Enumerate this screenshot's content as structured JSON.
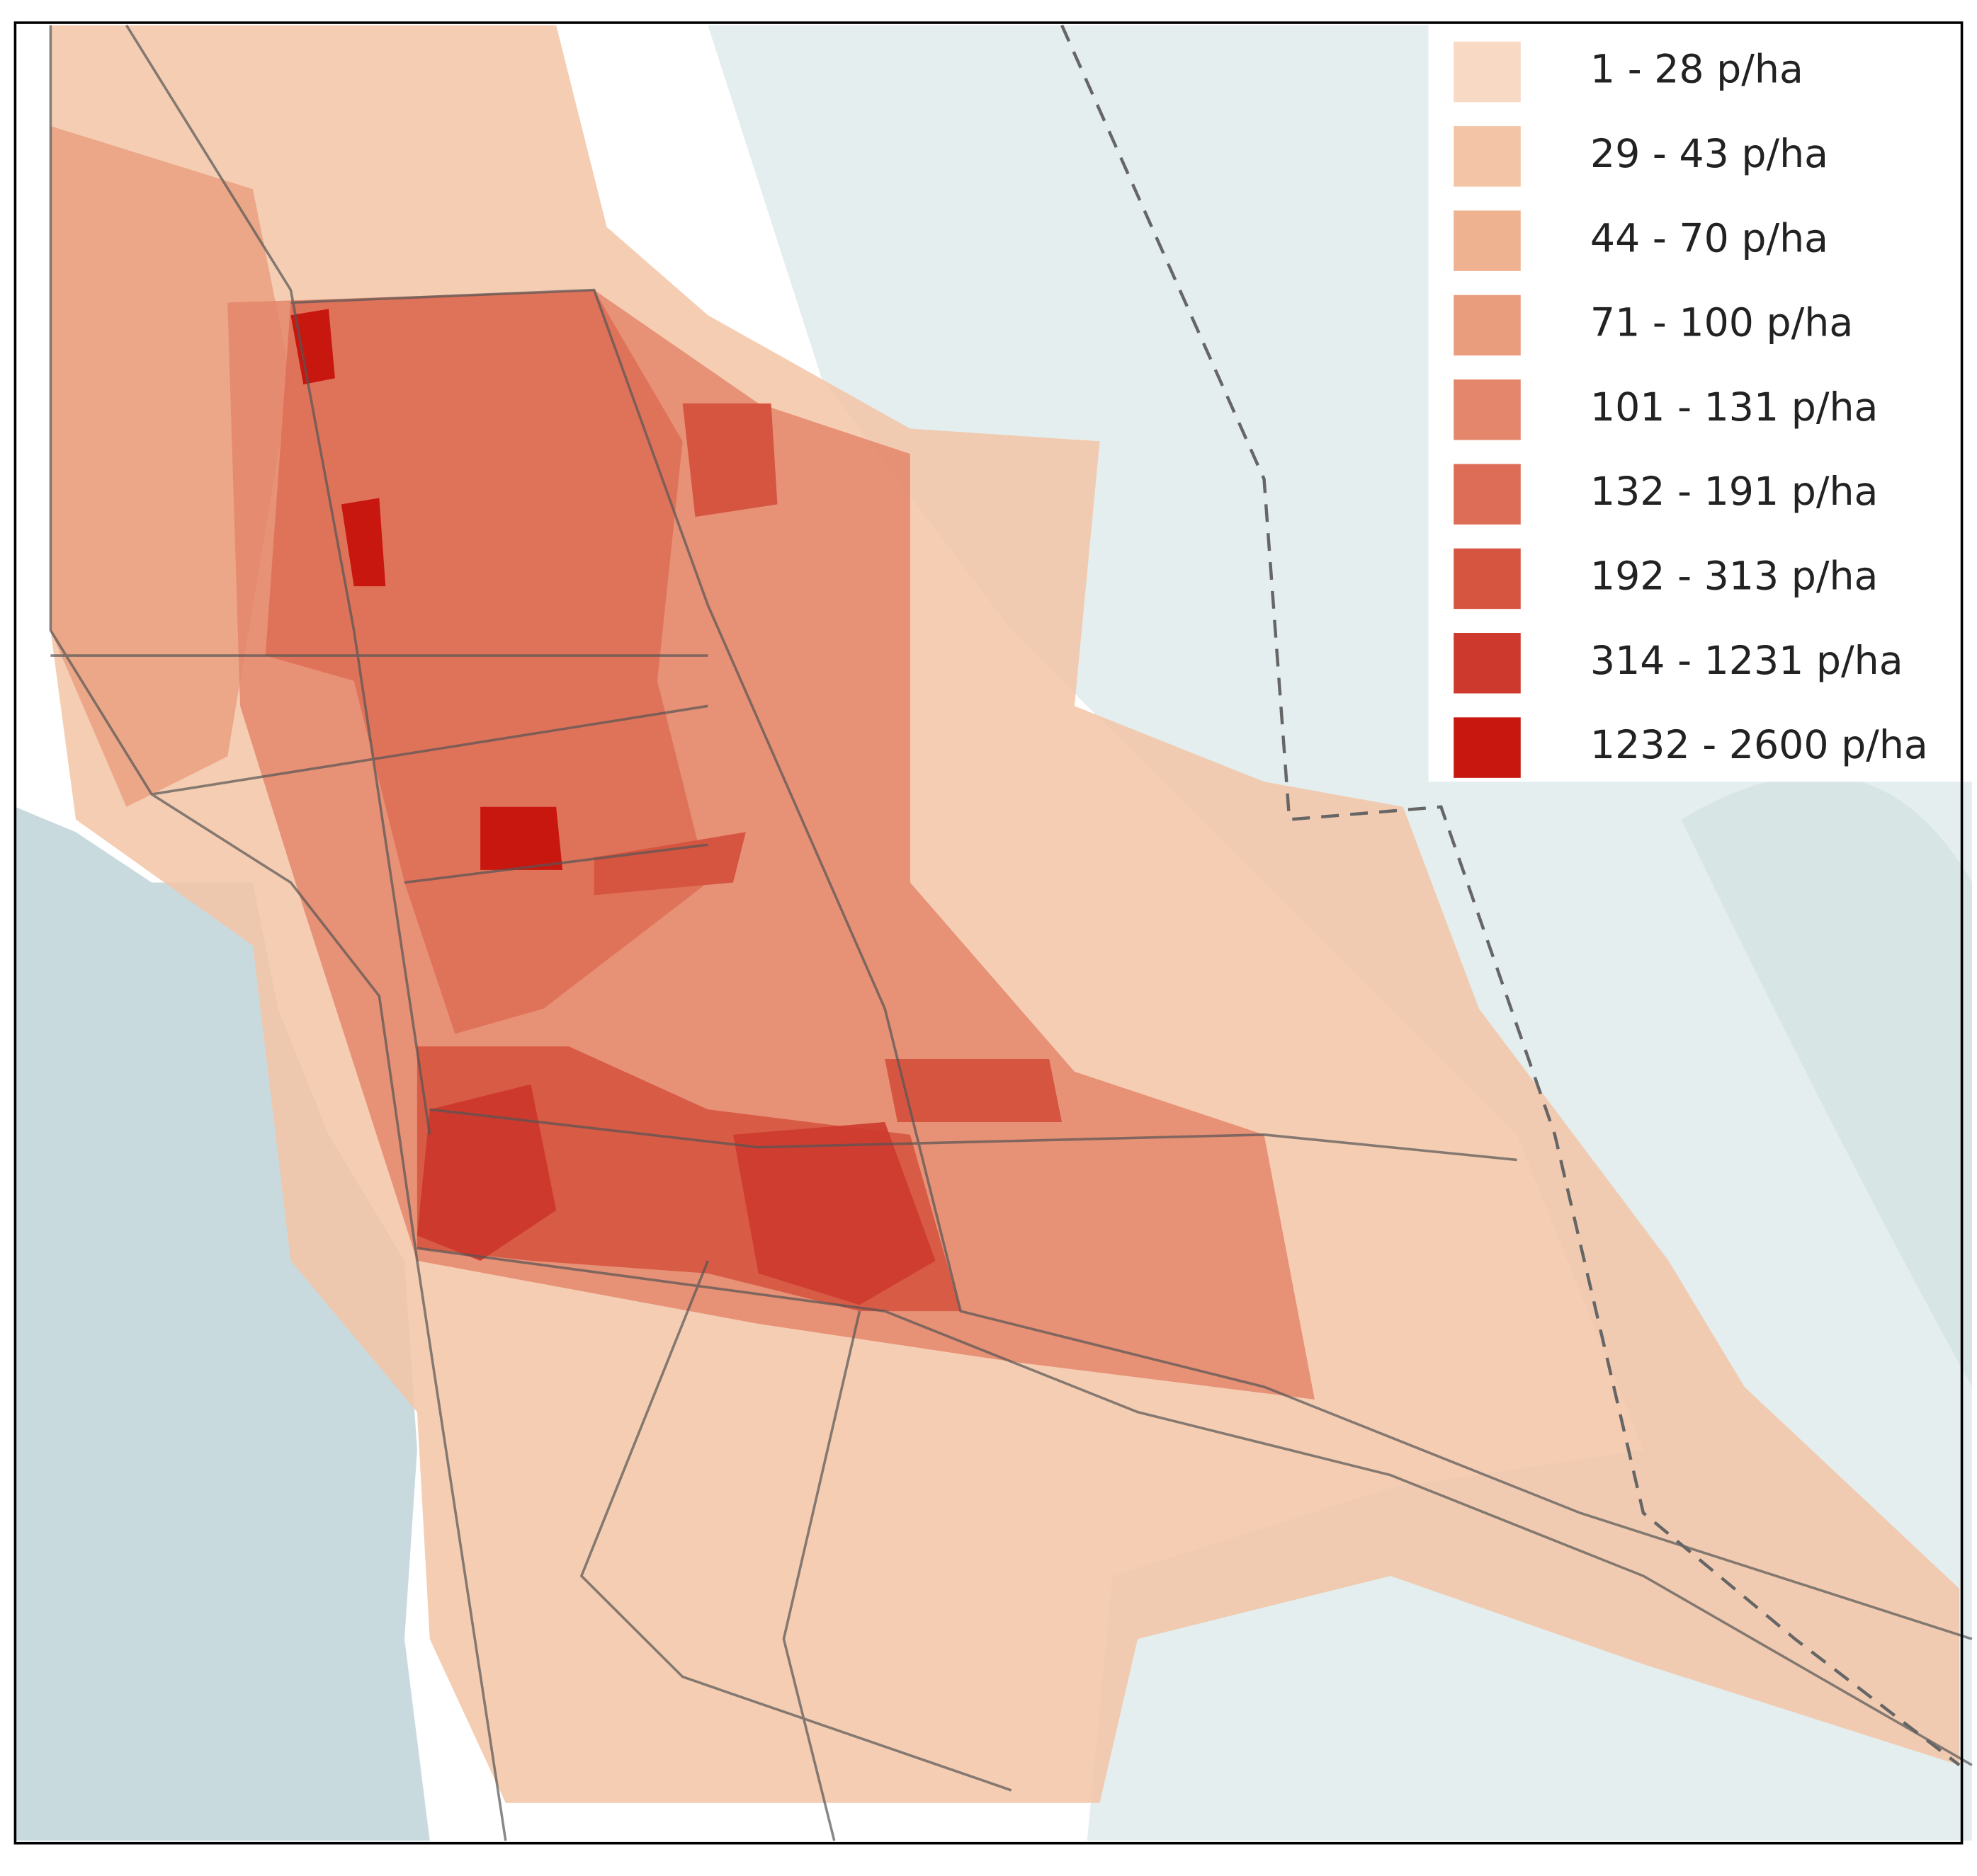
{
  "legend": {
    "items": [
      {
        "label": "1 - 28 p/ha",
        "color": "#f8d9c4"
      },
      {
        "label": "29 - 43 p/ha",
        "color": "#f3c4a6"
      },
      {
        "label": "44 - 70 p/ha",
        "color": "#efb291"
      },
      {
        "label": "71 - 100 p/ha",
        "color": "#e99d7d"
      },
      {
        "label": "101 - 131 p/ha",
        "color": "#e4866b"
      },
      {
        "label": "132 - 191 p/ha",
        "color": "#dd6d56"
      },
      {
        "label": "192 - 313 p/ha",
        "color": "#d65541"
      },
      {
        "label": "314 - 1231 p/ha",
        "color": "#cd3a2d"
      },
      {
        "label": "1232 - 2600 p/ha",
        "color": "#c8170f"
      }
    ]
  }
}
